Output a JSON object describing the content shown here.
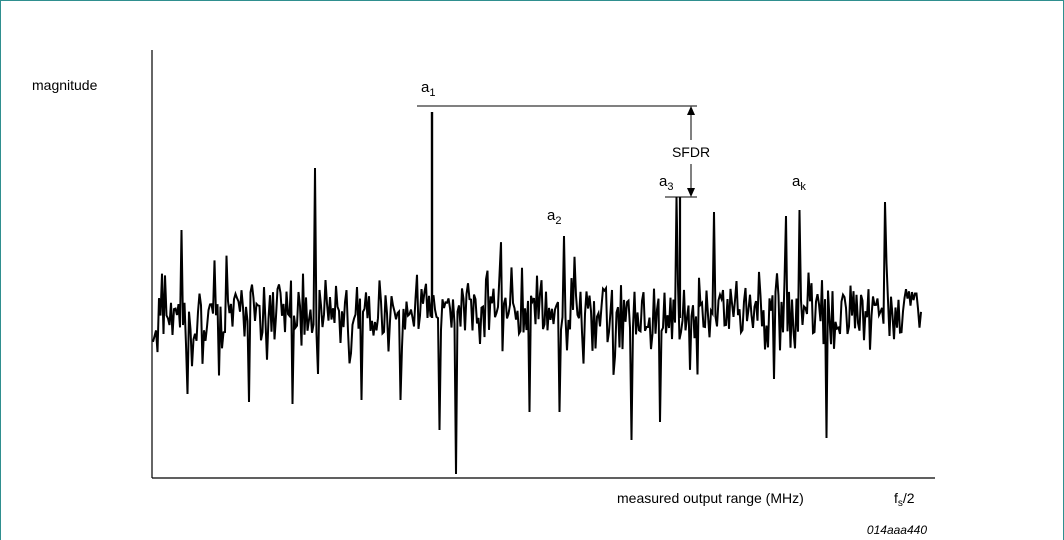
{
  "colors": {
    "frame": "#2f8f8f",
    "signal": "#000000"
  },
  "chart_data": {
    "type": "line",
    "ylabel": "magnitude",
    "xlabel": "measured output range (MHz)",
    "x_end_label": {
      "main": "f",
      "sub": "s",
      "rest": "/2"
    },
    "figure_id": "014aaa440",
    "sfdr_label": "SFDR",
    "peaks": [
      {
        "main": "a",
        "sub": "1"
      },
      {
        "main": "a",
        "sub": "2"
      },
      {
        "main": "a",
        "sub": "3"
      },
      {
        "main": "a",
        "sub": "k"
      }
    ]
  }
}
